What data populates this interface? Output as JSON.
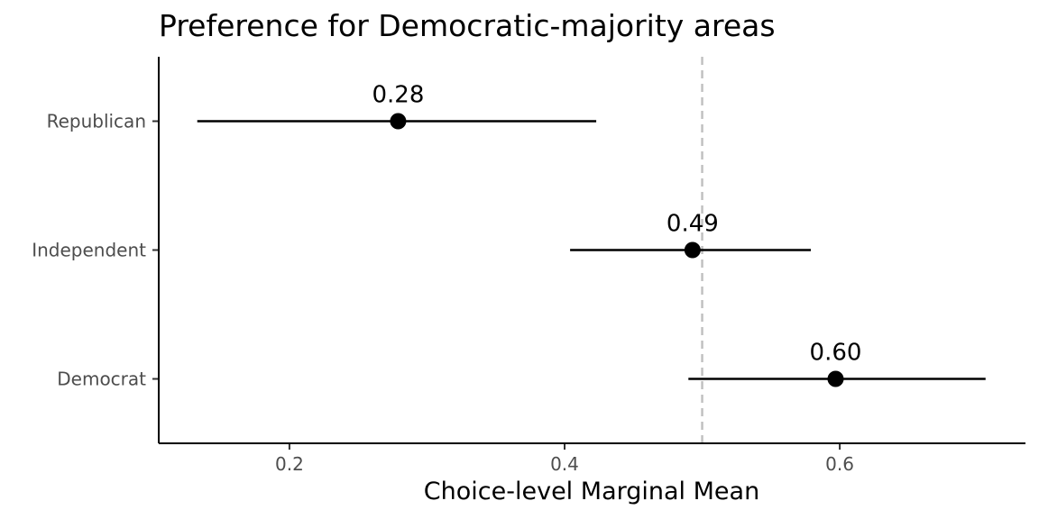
{
  "chart_data": {
    "type": "scatter",
    "title": "Preference for Democratic-majority areas",
    "xlabel": "Choice-level Marginal Mean",
    "ylabel": "",
    "xlim": [
      0.105,
      0.735
    ],
    "xticks": [
      0.2,
      0.4,
      0.6
    ],
    "xtick_labels": [
      "0.2",
      "0.4",
      "0.6"
    ],
    "reference_line": 0.5,
    "categories": [
      "Republican",
      "Independent",
      "Democrat"
    ],
    "estimates": [
      0.279,
      0.493,
      0.597
    ],
    "lower": [
      0.133,
      0.404,
      0.49
    ],
    "upper": [
      0.423,
      0.579,
      0.706
    ],
    "data_labels": [
      "0.28",
      "0.49",
      "0.60"
    ],
    "grid": false,
    "legend": "none",
    "colors": {
      "points": "#000000",
      "reference_line": "#bfbfbf",
      "axis": "#000000",
      "tick_text": "#4d4d4d"
    }
  }
}
